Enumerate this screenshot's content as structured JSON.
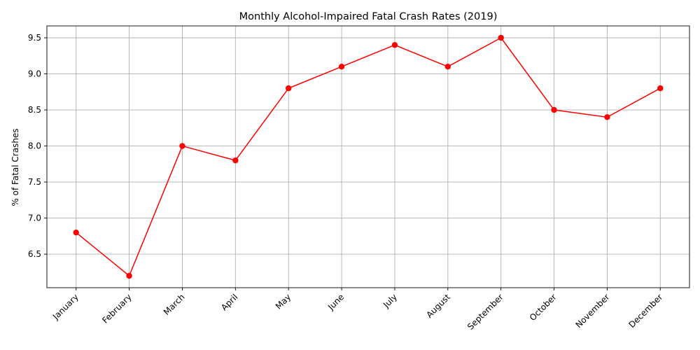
{
  "chart_data": {
    "type": "line",
    "title": "Monthly Alcohol-Impaired Fatal Crash Rates (2019)",
    "xlabel": "",
    "ylabel": "% of Fatal Crashes",
    "categories": [
      "January",
      "February",
      "March",
      "April",
      "May",
      "June",
      "July",
      "August",
      "September",
      "October",
      "November",
      "December"
    ],
    "series": [
      {
        "values": [
          6.8,
          6.2,
          8.0,
          7.8,
          8.8,
          9.1,
          9.4,
          9.1,
          9.5,
          8.5,
          8.4,
          8.8
        ],
        "color": "#ff0000",
        "marker": "circle"
      }
    ],
    "ylim": [
      6.035,
      9.665
    ],
    "yticks": [
      6.5,
      7.0,
      7.5,
      8.0,
      8.5,
      9.0,
      9.5
    ],
    "ytick_labels": [
      "6.5",
      "7.0",
      "7.5",
      "8.0",
      "8.5",
      "9.0",
      "9.5"
    ],
    "grid": true,
    "xtick_rotation": 45
  }
}
